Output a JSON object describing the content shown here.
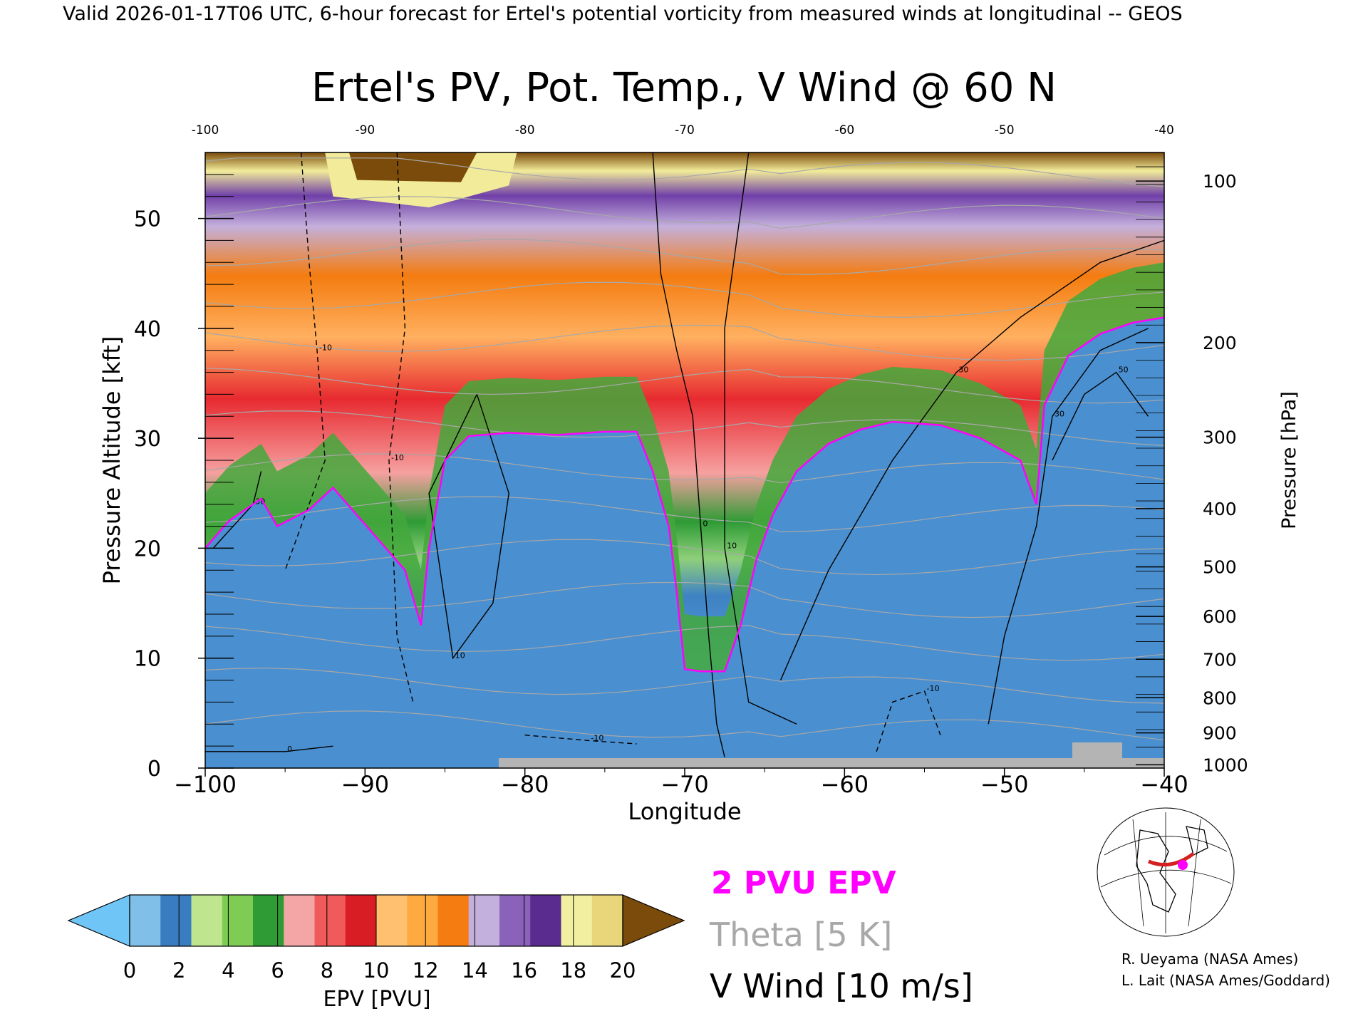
{
  "header": "Valid 2026-01-17T06 UTC, 6-hour forecast for Ertel's potential vorticity from measured winds at longitudinal -- GEOS",
  "chart_data": {
    "type": "heatmap",
    "title": "Ertel's PV, Pot. Temp., V Wind @ 60 N",
    "xlabel": "Longitude",
    "ylabel": "Pressure Altitude [kft]",
    "y2label": "Pressure [hPa]",
    "xlim": [
      -100,
      -40
    ],
    "ylim": [
      0,
      56
    ],
    "x_ticks": [
      -100,
      -90,
      -80,
      -70,
      -60,
      -50,
      -40
    ],
    "x_tick_labels": [
      "−100",
      "−90",
      "−80",
      "−70",
      "−60",
      "−50",
      "−40"
    ],
    "top_tick_labels": [
      "-100",
      "-90",
      "-80",
      "-70",
      "-60",
      "-50",
      "-40"
    ],
    "y_ticks": [
      0,
      10,
      20,
      30,
      40,
      50
    ],
    "y_tick_labels": [
      "0",
      "10",
      "20",
      "30",
      "40",
      "50"
    ],
    "pressure_ticks": [
      {
        "label": "100",
        "kft": 53.4
      },
      {
        "label": "200",
        "kft": 38.7
      },
      {
        "label": "300",
        "kft": 30.1
      },
      {
        "label": "400",
        "kft": 23.6
      },
      {
        "label": "500",
        "kft": 18.3
      },
      {
        "label": "600",
        "kft": 13.8
      },
      {
        "label": "700",
        "kft": 9.9
      },
      {
        "label": "800",
        "kft": 6.4
      },
      {
        "label": "900",
        "kft": 3.2
      },
      {
        "label": "1000",
        "kft": 0.3
      }
    ],
    "colorbar": {
      "label": "EPV [PVU]",
      "ticks": [
        "0",
        "2",
        "4",
        "6",
        "8",
        "10",
        "12",
        "14",
        "16",
        "18",
        "20"
      ],
      "colors": [
        "#6fc6f6",
        "#7fbfe8",
        "#3a7cc0",
        "#bfe58f",
        "#7fcc55",
        "#2e9b35",
        "#f4a5a5",
        "#f05a5a",
        "#d81e24",
        "#ffc070",
        "#ffaa40",
        "#f47c10",
        "#c4b0dc",
        "#8a62ba",
        "#5a2c90",
        "#f0f0a0",
        "#e9d57a",
        "#7a4b0a"
      ]
    },
    "legend": [
      {
        "label": "2 PVU EPV",
        "color": "#ff00ff"
      },
      {
        "label": "Theta [5 K]",
        "color": "#a8a8a8"
      },
      {
        "label": "V Wind [10 m/s]",
        "color": "#000000"
      }
    ],
    "tropopause_2pvu": [
      [
        -100,
        20
      ],
      [
        -98.5,
        22.5
      ],
      [
        -96.5,
        24.5
      ],
      [
        -95.5,
        22
      ],
      [
        -93.5,
        23.5
      ],
      [
        -92,
        25.5
      ],
      [
        -90.5,
        23
      ],
      [
        -89,
        20.5
      ],
      [
        -87.5,
        18
      ],
      [
        -86.5,
        13
      ],
      [
        -86,
        20
      ],
      [
        -85,
        28
      ],
      [
        -83.5,
        30.2
      ],
      [
        -81,
        30.5
      ],
      [
        -78,
        30.3
      ],
      [
        -75,
        30.6
      ],
      [
        -73,
        30.6
      ],
      [
        -72,
        27
      ],
      [
        -71,
        22
      ],
      [
        -70.5,
        16
      ],
      [
        -70,
        9
      ],
      [
        -69,
        8.8
      ],
      [
        -67.5,
        8.8
      ],
      [
        -66.5,
        13
      ],
      [
        -65.5,
        19
      ],
      [
        -64.5,
        23
      ],
      [
        -63,
        27
      ],
      [
        -61,
        29.5
      ],
      [
        -59,
        30.8
      ],
      [
        -57,
        31.5
      ],
      [
        -54,
        31.2
      ],
      [
        -51.5,
        30
      ],
      [
        -49,
        28
      ],
      [
        -48,
        24
      ],
      [
        -47.5,
        33
      ],
      [
        -46,
        37.5
      ],
      [
        -44,
        39.5
      ],
      [
        -42,
        40.5
      ],
      [
        -40,
        41
      ]
    ],
    "theta_levels_K": [
      270,
      300,
      310,
      320,
      330,
      340,
      350,
      360,
      370,
      380,
      390,
      400,
      410,
      420
    ],
    "v_wind_contours": [
      {
        "value": "0",
        "style": "solid",
        "points": [
          [
            -72,
            56
          ],
          [
            -71.5,
            45
          ],
          [
            -70.5,
            38
          ],
          [
            -69.5,
            32
          ],
          [
            -69,
            22
          ],
          [
            -68.5,
            12
          ],
          [
            -68,
            4
          ],
          [
            -67.5,
            1
          ]
        ]
      },
      {
        "value": "-10",
        "style": "dashed",
        "points": [
          [
            -88,
            56
          ],
          [
            -87.5,
            40
          ],
          [
            -88.5,
            28
          ],
          [
            -88,
            12
          ],
          [
            -87,
            6
          ]
        ]
      },
      {
        "value": "10",
        "style": "solid",
        "points": [
          [
            -83,
            34
          ],
          [
            -81,
            25
          ],
          [
            -82,
            15
          ],
          [
            -84.5,
            10
          ],
          [
            -86,
            25
          ],
          [
            -83,
            34
          ]
        ]
      },
      {
        "value": "10",
        "style": "solid",
        "points": [
          [
            -66,
            56
          ],
          [
            -67.5,
            40
          ],
          [
            -67.5,
            20
          ],
          [
            -66,
            6
          ],
          [
            -63,
            4
          ]
        ]
      },
      {
        "value": "30",
        "style": "solid",
        "points": [
          [
            -64,
            8
          ],
          [
            -61,
            18
          ],
          [
            -57,
            28
          ],
          [
            -53,
            36
          ],
          [
            -49,
            41
          ],
          [
            -44,
            46
          ],
          [
            -40,
            48
          ]
        ]
      },
      {
        "value": "30",
        "style": "solid",
        "points": [
          [
            -51,
            4
          ],
          [
            -50,
            12
          ],
          [
            -48,
            22
          ],
          [
            -47,
            32
          ],
          [
            -44,
            38
          ],
          [
            -41,
            40
          ]
        ]
      },
      {
        "value": "50",
        "style": "solid",
        "points": [
          [
            -47,
            28
          ],
          [
            -45,
            34
          ],
          [
            -43,
            36
          ],
          [
            -41,
            32
          ]
        ]
      },
      {
        "value": "30",
        "style": "solid",
        "points": [
          [
            -99.5,
            20
          ],
          [
            -97,
            24
          ],
          [
            -96.5,
            27
          ]
        ]
      },
      {
        "value": "-10",
        "style": "dashed",
        "points": [
          [
            -94,
            56
          ],
          [
            -93.5,
            46
          ],
          [
            -93,
            38
          ],
          [
            -92.5,
            28
          ],
          [
            -95,
            18
          ]
        ]
      },
      {
        "value": "-10",
        "style": "dashed",
        "points": [
          [
            -80,
            3
          ],
          [
            -76,
            2.5
          ],
          [
            -73,
            2.2
          ]
        ]
      },
      {
        "value": "-10",
        "style": "dashed",
        "points": [
          [
            -58,
            1.5
          ],
          [
            -57,
            6
          ],
          [
            -55,
            7
          ],
          [
            -54,
            3
          ]
        ]
      },
      {
        "value": "0",
        "style": "solid",
        "points": [
          [
            -100,
            1.5
          ],
          [
            -95,
            1.5
          ],
          [
            -92,
            2
          ]
        ]
      }
    ]
  }
}
